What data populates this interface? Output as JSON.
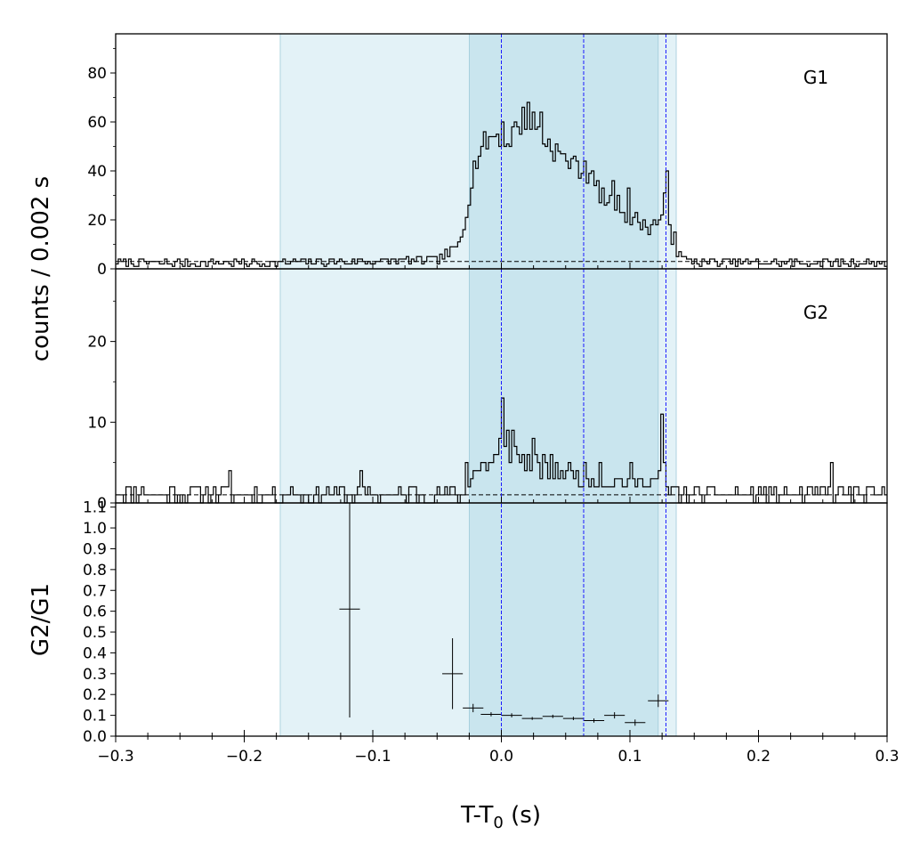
{
  "chart_data": {
    "type": "line",
    "xlabel": "T-T₀ (s)",
    "xlabel_main": "T-T",
    "xlabel_sub": "0",
    "xlabel_unit": " (s)",
    "ylabel_top": "counts /  0.002 s",
    "ylabel_bottom": "G2/G1",
    "xlim": [
      -0.3,
      0.3
    ],
    "x_ticks": [
      -0.3,
      -0.2,
      -0.1,
      0.0,
      0.1,
      0.2,
      0.3
    ],
    "x_tick_labels": [
      "−0.3",
      "−0.2",
      "−0.1",
      "0.0",
      "0.1",
      "0.2",
      "0.3"
    ],
    "colors": {
      "light_band": "#e3f2f7",
      "dark_band": "#c9e5ee",
      "band_edge": "#9fcad9",
      "marker_line": "#1a1aff",
      "data": "#000000"
    },
    "light_interval": [
      -0.172,
      0.136
    ],
    "dark_interval": [
      -0.025,
      0.122
    ],
    "marker_lines": [
      0.0,
      0.064,
      0.128
    ],
    "panels": [
      {
        "label": "G1",
        "ylim": [
          0,
          96
        ],
        "y_ticks": [
          0,
          20,
          40,
          60,
          80
        ],
        "y_tick_labels": [
          "0",
          "20",
          "40",
          "60",
          "80"
        ],
        "background": 3,
        "series": {
          "name": "G1",
          "bin_width": 0.002,
          "x_start": -0.3,
          "knots": [
            [
              -0.3,
              2.5
            ],
            [
              -0.172,
              2.5
            ],
            [
              -0.05,
              3.5
            ],
            [
              -0.035,
              8
            ],
            [
              -0.03,
              15
            ],
            [
              -0.025,
              30
            ],
            [
              -0.02,
              44
            ],
            [
              -0.015,
              50
            ],
            [
              -0.01,
              53
            ],
            [
              -0.005,
              55
            ],
            [
              0.0,
              55
            ],
            [
              0.005,
              52
            ],
            [
              0.01,
              56
            ],
            [
              0.015,
              60
            ],
            [
              0.02,
              63
            ],
            [
              0.025,
              60
            ],
            [
              0.03,
              55
            ],
            [
              0.035,
              52
            ],
            [
              0.04,
              50
            ],
            [
              0.045,
              47
            ],
            [
              0.05,
              44
            ],
            [
              0.055,
              42
            ],
            [
              0.06,
              41
            ],
            [
              0.065,
              40
            ],
            [
              0.07,
              38
            ],
            [
              0.075,
              33
            ],
            [
              0.08,
              28
            ],
            [
              0.085,
              27
            ],
            [
              0.09,
              27
            ],
            [
              0.095,
              24
            ],
            [
              0.1,
              20
            ],
            [
              0.105,
              20
            ],
            [
              0.11,
              18
            ],
            [
              0.115,
              17
            ],
            [
              0.12,
              19
            ],
            [
              0.125,
              22
            ],
            [
              0.127,
              28
            ],
            [
              0.13,
              20
            ],
            [
              0.133,
              12
            ],
            [
              0.137,
              6
            ],
            [
              0.145,
              3.5
            ],
            [
              0.16,
              2.5
            ],
            [
              0.3,
              2.5
            ]
          ],
          "spikes": [
            [
              0.0,
              60
            ],
            [
              0.019,
              68
            ],
            [
              0.03,
              64
            ],
            [
              0.053,
              45
            ],
            [
              0.064,
              44
            ],
            [
              0.085,
              36
            ],
            [
              0.097,
              33
            ],
            [
              0.127,
              40
            ],
            [
              0.133,
              15
            ]
          ],
          "noise_amplitude": 1.6,
          "noise_scale": 0.06,
          "seed": 7
        }
      },
      {
        "label": "G2",
        "ylim": [
          0,
          29
        ],
        "y_ticks": [
          0,
          10,
          20
        ],
        "y_tick_labels": [
          "0",
          "10",
          "20"
        ],
        "background": 1,
        "series": {
          "name": "G2",
          "bin_width": 0.002,
          "x_start": -0.3,
          "knots": [
            [
              -0.3,
              1.1
            ],
            [
              -0.03,
              1.1
            ],
            [
              -0.025,
              3
            ],
            [
              -0.01,
              5
            ],
            [
              0.0,
              6
            ],
            [
              0.01,
              6.5
            ],
            [
              0.02,
              5
            ],
            [
              0.04,
              4
            ],
            [
              0.06,
              3.5
            ],
            [
              0.08,
              3
            ],
            [
              0.1,
              2.5
            ],
            [
              0.12,
              2.8
            ],
            [
              0.125,
              5
            ],
            [
              0.13,
              1.5
            ],
            [
              0.14,
              1.1
            ],
            [
              0.3,
              1.1
            ]
          ],
          "spikes": [
            [
              -0.212,
              4
            ],
            [
              -0.11,
              4
            ],
            [
              -0.027,
              5
            ],
            [
              -0.003,
              8
            ],
            [
              0.0,
              13
            ],
            [
              0.004,
              9
            ],
            [
              0.008,
              9
            ],
            [
              0.024,
              8
            ],
            [
              0.038,
              6
            ],
            [
              0.076,
              5
            ],
            [
              0.1,
              5
            ],
            [
              0.124,
              11
            ],
            [
              0.257,
              5
            ]
          ],
          "noise_amplitude": 0.9,
          "noise_scale": 0.08,
          "seed": 11
        }
      },
      {
        "label": "",
        "ylim": [
          0,
          1.12
        ],
        "y_ticks": [
          0.0,
          0.1,
          0.2,
          0.3,
          0.4,
          0.5,
          0.6,
          0.7,
          0.8,
          0.9,
          1.0,
          1.1
        ],
        "y_tick_labels": [
          "0.0",
          "0.1",
          "0.2",
          "0.3",
          "0.4",
          "0.5",
          "0.6",
          "0.7",
          "0.8",
          "0.9",
          "1.0",
          "1.1"
        ],
        "series": {
          "name": "G2/G1",
          "points": [
            {
              "x": -0.118,
              "xerr": 0.008,
              "y": 0.61,
              "ylo": 0.09,
              "yhi": 1.12
            },
            {
              "x": -0.038,
              "xerr": 0.008,
              "y": 0.3,
              "ylo": 0.13,
              "yhi": 0.47
            },
            {
              "x": -0.022,
              "xerr": 0.008,
              "y": 0.135,
              "ylo": 0.115,
              "yhi": 0.155
            },
            {
              "x": -0.008,
              "xerr": 0.008,
              "y": 0.105,
              "ylo": 0.095,
              "yhi": 0.115
            },
            {
              "x": 0.008,
              "xerr": 0.008,
              "y": 0.1,
              "ylo": 0.09,
              "yhi": 0.11
            },
            {
              "x": 0.024,
              "xerr": 0.008,
              "y": 0.085,
              "ylo": 0.078,
              "yhi": 0.092
            },
            {
              "x": 0.04,
              "xerr": 0.008,
              "y": 0.095,
              "ylo": 0.087,
              "yhi": 0.103
            },
            {
              "x": 0.056,
              "xerr": 0.008,
              "y": 0.085,
              "ylo": 0.077,
              "yhi": 0.093
            },
            {
              "x": 0.072,
              "xerr": 0.008,
              "y": 0.075,
              "ylo": 0.065,
              "yhi": 0.085
            },
            {
              "x": 0.088,
              "xerr": 0.008,
              "y": 0.1,
              "ylo": 0.085,
              "yhi": 0.115
            },
            {
              "x": 0.104,
              "xerr": 0.008,
              "y": 0.065,
              "ylo": 0.05,
              "yhi": 0.08
            },
            {
              "x": 0.122,
              "xerr": 0.008,
              "y": 0.17,
              "ylo": 0.14,
              "yhi": 0.2
            }
          ]
        }
      }
    ]
  }
}
